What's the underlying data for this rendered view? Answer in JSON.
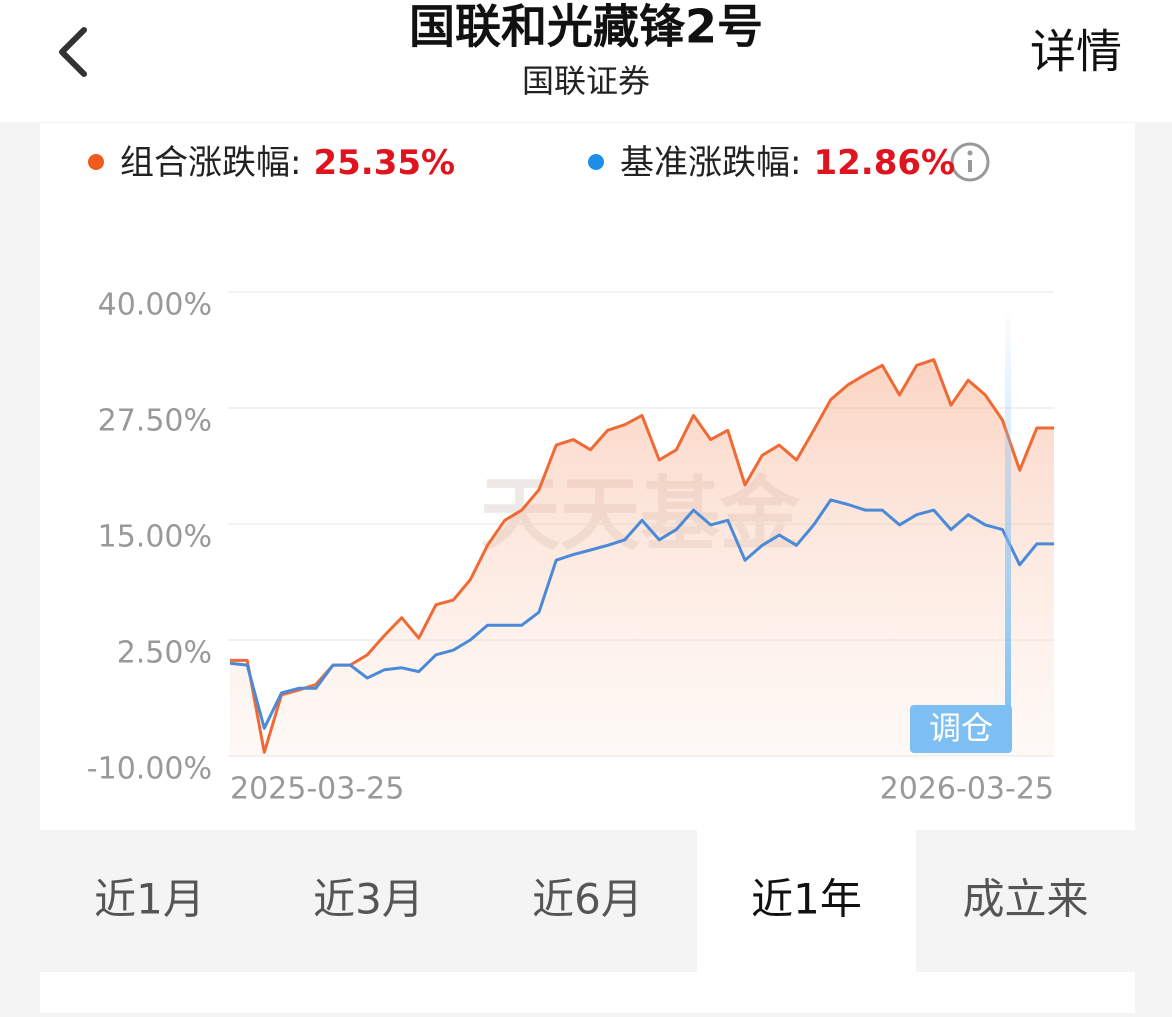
{
  "header": {
    "title": "国联和光藏锋2号",
    "subtitle": "国联证券",
    "action": "详情"
  },
  "chart_data": {
    "type": "line",
    "watermark": "天天基金",
    "annotation": "调仓",
    "categories": [
      "2025-03-25",
      null,
      null,
      null,
      null,
      null,
      null,
      null,
      null,
      null,
      null,
      null,
      null,
      null,
      null,
      null,
      null,
      null,
      null,
      null,
      null,
      null,
      null,
      null,
      null,
      null,
      null,
      null,
      null,
      null,
      null,
      null,
      null,
      null,
      null,
      null,
      null,
      null,
      null,
      null,
      null,
      null,
      null,
      null,
      null,
      null,
      null,
      null,
      "2026-03-25"
    ],
    "series": [
      {
        "name": "组合涨跌幅:",
        "color": "#f06a35",
        "summary": 25.35,
        "summary_label": "25.35%",
        "values": [
          0.3,
          0.3,
          -9.6,
          -3.4,
          -2.9,
          -2.3,
          -0.2,
          -0.2,
          0.9,
          3.0,
          4.9,
          2.7,
          6.3,
          6.8,
          9.0,
          12.7,
          15.4,
          16.5,
          18.7,
          23.5,
          24.1,
          23.0,
          25.1,
          25.7,
          26.7,
          21.9,
          23.0,
          26.7,
          24.1,
          25.1,
          19.2,
          22.4,
          23.5,
          21.9,
          25.1,
          28.4,
          30.0,
          31.1,
          32.1,
          28.9,
          32.1,
          32.7,
          27.8,
          30.5,
          28.9,
          26.2,
          20.8,
          25.35,
          25.35
        ]
      },
      {
        "name": "基准涨跌幅:",
        "color": "#4a8ad8",
        "summary": 12.86,
        "summary_label": "12.86%",
        "values": [
          0.0,
          -0.2,
          -7.0,
          -3.2,
          -2.7,
          -2.7,
          -0.2,
          -0.2,
          -1.6,
          -0.7,
          -0.5,
          -0.9,
          0.9,
          1.4,
          2.5,
          4.1,
          4.1,
          4.1,
          5.5,
          11.1,
          11.7,
          12.2,
          12.7,
          13.3,
          15.4,
          13.3,
          14.4,
          16.5,
          14.9,
          15.4,
          11.1,
          12.7,
          13.8,
          12.7,
          14.9,
          17.6,
          17.1,
          16.5,
          16.5,
          14.9,
          16.0,
          16.5,
          14.4,
          16.0,
          14.9,
          14.4,
          10.6,
          12.86,
          12.86
        ]
      }
    ],
    "ylim": [
      -10,
      40
    ],
    "yticks": [
      {
        "value": -10,
        "label": "-10.00%"
      },
      {
        "value": 2.5,
        "label": "2.50%"
      },
      {
        "value": 15,
        "label": "15.00%"
      },
      {
        "value": 27.5,
        "label": "27.50%"
      },
      {
        "value": 40,
        "label": "40.00%"
      }
    ],
    "grid": true
  },
  "tabs": [
    {
      "label": "近1月",
      "active": false
    },
    {
      "label": "近3月",
      "active": false
    },
    {
      "label": "近6月",
      "active": false
    },
    {
      "label": "近1年",
      "active": true
    },
    {
      "label": "成立来",
      "active": false
    }
  ]
}
